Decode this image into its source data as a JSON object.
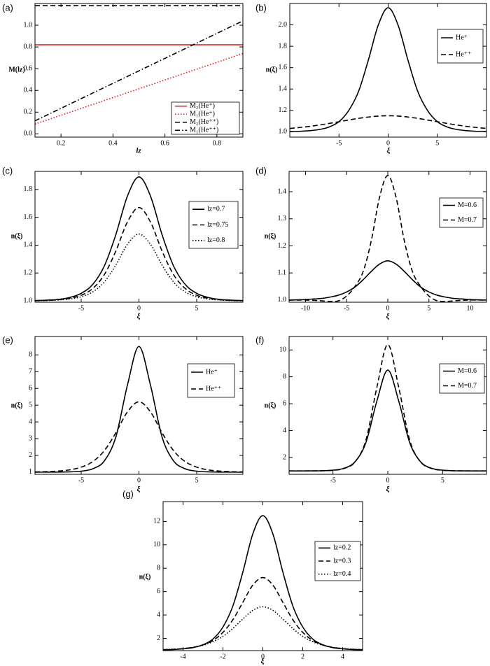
{
  "chart_data": [
    {
      "type": "line",
      "label": "(a)",
      "xlabel": "lz",
      "ylabel": "M(lz)",
      "x": [
        0.1,
        0.9
      ],
      "xlim": [
        0.1,
        0.9
      ],
      "ylim": [
        -0.03,
        1.2
      ],
      "xticks": [
        0.2,
        0.4,
        0.6,
        0.8
      ],
      "yticks": [
        {
          "value": 0,
          "label": "0.0"
        },
        0.2,
        0.4,
        0.6,
        0.8,
        {
          "value": 1,
          "label": "1.0"
        }
      ],
      "series": [
        {
          "name": "M₂(He⁺)",
          "color": "#e3161b",
          "dash": "solid",
          "values": [
            0.82,
            0.82
          ]
        },
        {
          "name": "M₁(He⁺)",
          "color": "#e3161b",
          "dash": "dotted",
          "values": [
            0.09,
            0.74
          ]
        },
        {
          "name": "M₂(He⁺⁺)",
          "color": "#000000",
          "dash": "dashed",
          "values": [
            1.18,
            1.18
          ]
        },
        {
          "name": "M₁(He⁺⁺)",
          "color": "#000000",
          "dash": "dashdot",
          "values": [
            0.12,
            1.04
          ]
        }
      ]
    },
    {
      "type": "line",
      "label": "(b)",
      "xlabel": "ξ",
      "ylabel": "n(ξ)",
      "x": [
        -10,
        -9,
        -8,
        -7,
        -6,
        -5,
        -4,
        -3,
        -2,
        -1,
        0,
        1,
        2,
        3,
        4,
        5,
        6,
        7,
        8,
        9,
        10
      ],
      "xlim": [
        -10,
        10
      ],
      "ylim": [
        0.95,
        2.2
      ],
      "xticks": [
        -5,
        0,
        5
      ],
      "yticks": [
        {
          "value": 1,
          "label": "1.0"
        },
        1.2,
        1.4,
        1.6,
        1.8,
        {
          "value": 2,
          "label": "2.0"
        }
      ],
      "series": [
        {
          "name": "He⁺",
          "color": "#000000",
          "dash": "solid",
          "values": [
            1.002,
            1.004,
            1.01,
            1.021,
            1.045,
            1.095,
            1.2,
            1.38,
            1.675,
            2.0,
            2.16,
            2.0,
            1.675,
            1.38,
            1.2,
            1.095,
            1.045,
            1.021,
            1.01,
            1.004,
            1.002
          ]
        },
        {
          "name": "He⁺⁺",
          "color": "#000000",
          "dash": "dashed",
          "values": [
            1.031,
            1.04,
            1.05,
            1.063,
            1.078,
            1.094,
            1.11,
            1.126,
            1.138,
            1.147,
            1.15,
            1.147,
            1.138,
            1.126,
            1.11,
            1.094,
            1.078,
            1.063,
            1.05,
            1.04,
            1.031
          ]
        }
      ]
    },
    {
      "type": "line",
      "label": "(c)",
      "xlabel": "ξ",
      "ylabel": "n(ξ)",
      "x": [
        -9,
        -8,
        -7,
        -6,
        -5,
        -4,
        -3,
        -2,
        -1,
        0,
        1,
        2,
        3,
        4,
        5,
        6,
        7,
        8,
        9
      ],
      "xlim": [
        -9,
        9
      ],
      "ylim": [
        0.99,
        1.93
      ],
      "xticks": [
        -5,
        0,
        5
      ],
      "yticks": [
        {
          "value": 1,
          "label": "1.0"
        },
        1.2,
        1.4,
        1.6,
        1.8
      ],
      "series": [
        {
          "name": "lz=0.7",
          "color": "#000000",
          "dash": "solid",
          "values": [
            1.002,
            1.005,
            1.01,
            1.024,
            1.054,
            1.118,
            1.25,
            1.476,
            1.752,
            1.89,
            1.752,
            1.476,
            1.25,
            1.118,
            1.054,
            1.024,
            1.01,
            1.005,
            1.002
          ]
        },
        {
          "name": "lz=0.75",
          "color": "#000000",
          "dash": "dashed",
          "values": [
            1.001,
            1.003,
            1.008,
            1.018,
            1.04,
            1.089,
            1.188,
            1.358,
            1.566,
            1.67,
            1.566,
            1.358,
            1.188,
            1.089,
            1.04,
            1.018,
            1.008,
            1.003,
            1.001
          ]
        },
        {
          "name": "lz=0.8",
          "color": "#000000",
          "dash": "dotted",
          "values": [
            1.001,
            1.002,
            1.006,
            1.013,
            1.029,
            1.064,
            1.135,
            1.257,
            1.406,
            1.48,
            1.406,
            1.257,
            1.135,
            1.064,
            1.029,
            1.013,
            1.006,
            1.002,
            1.001
          ]
        }
      ]
    },
    {
      "type": "line",
      "label": "(d)",
      "xlabel": "ξ",
      "ylabel": "n(ξ)",
      "x": [
        -12,
        -11,
        -10,
        -9,
        -8,
        -7,
        -6,
        -5,
        -4,
        -3,
        -2,
        -1,
        0,
        1,
        2,
        3,
        4,
        5,
        6,
        7,
        8,
        9,
        10,
        11,
        12
      ],
      "xlim": [
        -12,
        12
      ],
      "ylim": [
        0.992,
        1.475
      ],
      "xticks": [
        -10,
        -5,
        0,
        5,
        10
      ],
      "yticks": [
        {
          "value": 1,
          "label": "1.0"
        },
        1.1,
        1.2,
        1.3,
        1.4
      ],
      "series": [
        {
          "name": "M=0.6",
          "color": "#000000",
          "dash": "solid",
          "values": [
            1.0,
            1.001,
            1.002,
            1.004,
            1.006,
            1.011,
            1.018,
            1.03,
            1.048,
            1.075,
            1.106,
            1.133,
            1.145,
            1.133,
            1.106,
            1.075,
            1.048,
            1.03,
            1.018,
            1.011,
            1.006,
            1.004,
            1.002,
            1.001,
            1.0
          ]
        },
        {
          "name": "M=0.7",
          "color": "#000000",
          "dash": "dashed",
          "values": [
            1.0,
            1.0,
            1.0,
            0.999,
            0.997,
            0.995,
            0.997,
            1.015,
            1.05,
            1.105,
            1.22,
            1.38,
            1.46,
            1.38,
            1.22,
            1.105,
            1.05,
            1.015,
            0.997,
            0.995,
            0.997,
            0.999,
            1.0,
            1.0,
            1.0
          ]
        }
      ]
    },
    {
      "type": "line",
      "label": "(e)",
      "xlabel": "ξ",
      "ylabel": "n(ξ)",
      "x": [
        -9,
        -8,
        -7,
        -6,
        -5,
        -4,
        -3,
        -2,
        -1,
        0,
        1,
        2,
        3,
        4,
        5,
        6,
        7,
        8,
        9
      ],
      "xlim": [
        -9,
        9
      ],
      "ylim": [
        0.87,
        9.1
      ],
      "xticks": [
        -5,
        0,
        5
      ],
      "yticks": [
        1,
        2,
        3,
        4,
        5,
        6,
        7,
        8
      ],
      "series": [
        {
          "name": "He⁺",
          "color": "#000000",
          "dash": "solid",
          "values": [
            1.0,
            1.001,
            1.005,
            1.017,
            1.058,
            1.2,
            1.67,
            3.1,
            6.19,
            8.5,
            6.19,
            3.1,
            1.67,
            1.2,
            1.058,
            1.017,
            1.005,
            1.001,
            1.0
          ]
        },
        {
          "name": "He⁺⁺",
          "color": "#000000",
          "dash": "dashed",
          "values": [
            1.012,
            1.028,
            1.062,
            1.136,
            1.3,
            1.63,
            2.28,
            3.35,
            4.595,
            5.2,
            4.595,
            3.35,
            2.28,
            1.63,
            1.3,
            1.136,
            1.062,
            1.028,
            1.012
          ]
        }
      ]
    },
    {
      "type": "line",
      "label": "(f)",
      "xlabel": "ξ",
      "ylabel": "n(ξ)",
      "x": [
        -9,
        -8,
        -7,
        -6,
        -5,
        -4,
        -3,
        -2,
        -1,
        0,
        1,
        2,
        3,
        4,
        5,
        6,
        7,
        8,
        9
      ],
      "xlim": [
        -9,
        9
      ],
      "ylim": [
        0.75,
        11
      ],
      "xticks": [
        -5,
        0,
        5
      ],
      "yticks": [
        2,
        4,
        6,
        8,
        10
      ],
      "series": [
        {
          "name": "M=0.6",
          "color": "#000000",
          "dash": "solid",
          "values": [
            1.0,
            1.001,
            1.005,
            1.017,
            1.058,
            1.2,
            1.67,
            3.1,
            6.19,
            8.5,
            6.19,
            3.1,
            1.67,
            1.2,
            1.058,
            1.017,
            1.005,
            1.001,
            1.0
          ]
        },
        {
          "name": "M=0.7",
          "color": "#000000",
          "dash": "dashed",
          "values": [
            1.0,
            1.001,
            1.003,
            1.013,
            1.048,
            1.18,
            1.66,
            3.28,
            7.2,
            10.4,
            7.2,
            3.28,
            1.66,
            1.18,
            1.048,
            1.013,
            1.003,
            1.001,
            1.0
          ]
        }
      ]
    },
    {
      "type": "line",
      "label": "(g)",
      "xlabel": "ξ",
      "ylabel": "n(ξ)",
      "x": [
        -5,
        -4.5,
        -4,
        -3.5,
        -3,
        -2.5,
        -2,
        -1.5,
        -1,
        -0.5,
        0,
        0.5,
        1,
        1.5,
        2,
        2.5,
        3,
        3.5,
        4,
        4.5,
        5
      ],
      "xlim": [
        -5,
        5
      ],
      "ylim": [
        0.95,
        13.7
      ],
      "xticks": [
        -4,
        -2,
        0,
        2,
        4
      ],
      "yticks": [
        2,
        4,
        6,
        8,
        10,
        12
      ],
      "series": [
        {
          "name": "lz=0.2",
          "color": "#000000",
          "dash": "solid",
          "values": [
            1.02,
            1.045,
            1.1,
            1.21,
            1.45,
            1.94,
            2.97,
            4.78,
            7.69,
            10.95,
            12.5,
            10.95,
            7.69,
            4.78,
            2.97,
            1.94,
            1.45,
            1.21,
            1.1,
            1.045,
            1.02
          ]
        },
        {
          "name": "lz=0.3",
          "color": "#000000",
          "dash": "dashed",
          "values": [
            1.03,
            1.06,
            1.12,
            1.23,
            1.44,
            1.82,
            2.51,
            3.6,
            5.09,
            6.56,
            7.2,
            6.56,
            5.09,
            3.6,
            2.51,
            1.82,
            1.44,
            1.23,
            1.12,
            1.06,
            1.03
          ]
        },
        {
          "name": "lz=0.4",
          "color": "#000000",
          "dash": "dotted",
          "values": [
            1.04,
            1.07,
            1.13,
            1.23,
            1.41,
            1.71,
            2.17,
            2.85,
            3.66,
            4.4,
            4.7,
            4.4,
            3.66,
            2.85,
            2.17,
            1.71,
            1.41,
            1.23,
            1.13,
            1.07,
            1.04
          ]
        }
      ]
    }
  ]
}
